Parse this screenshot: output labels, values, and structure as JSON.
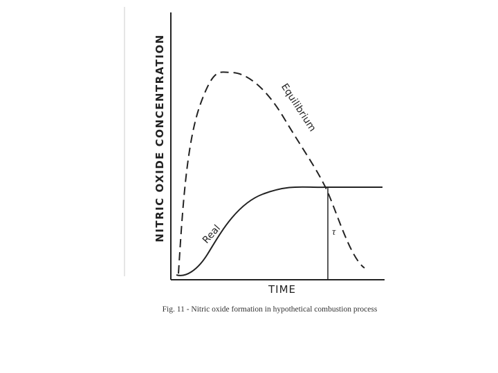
{
  "figure": {
    "y_axis_label": "NITRIC OXIDE CONCENTRATION",
    "x_axis_label": "TIME",
    "curves": [
      {
        "label": "Equilibrium"
      },
      {
        "label": "Real"
      }
    ],
    "marker_label": "τ",
    "caption": "Fig. 11 - Nitric oxide formation in hypothetical combustion process"
  }
}
